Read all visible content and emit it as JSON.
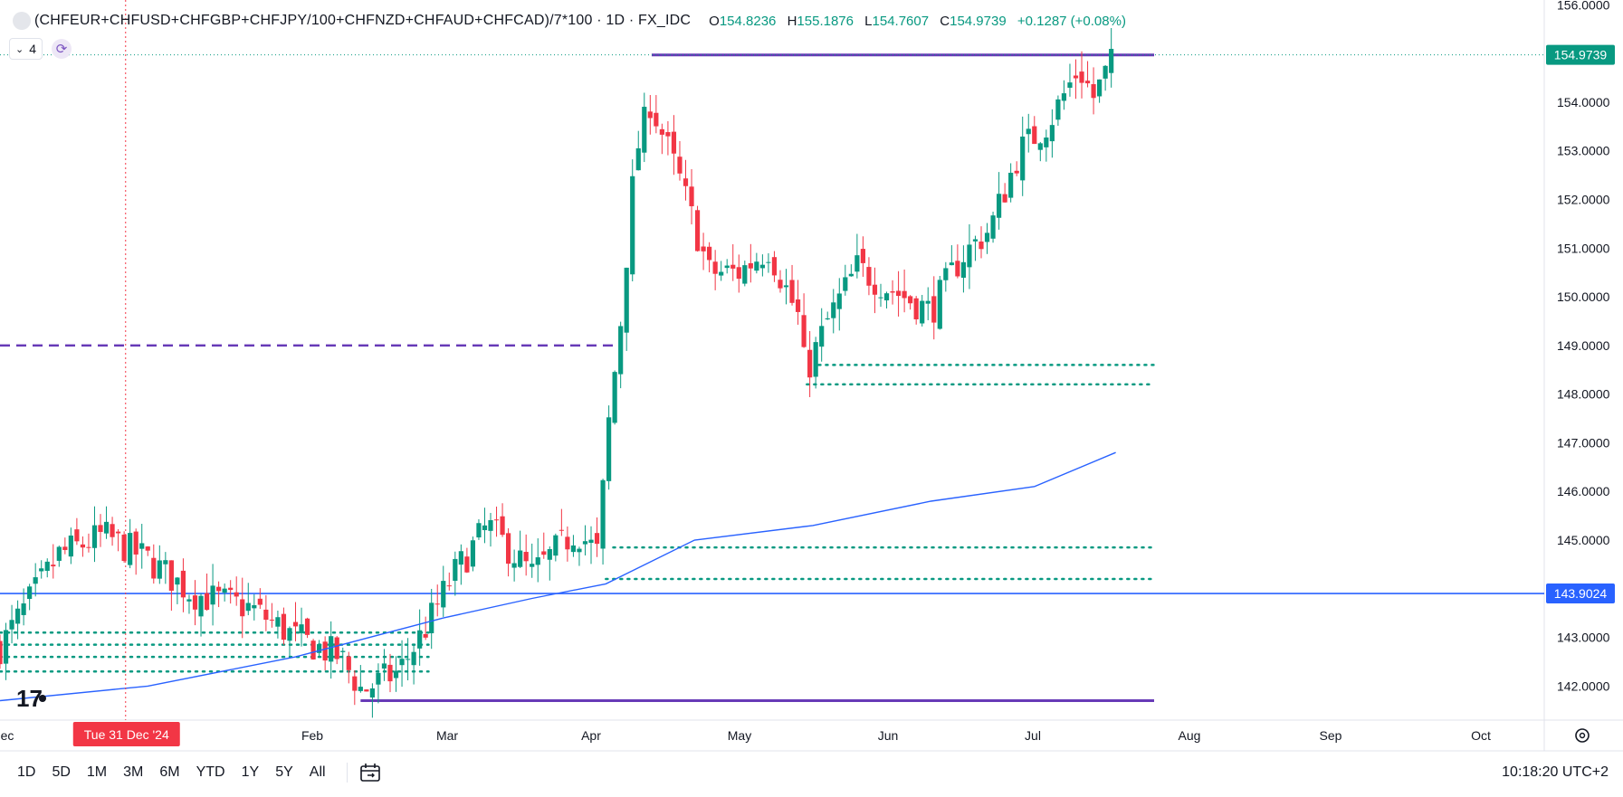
{
  "legend": {
    "symbol": "(CHFEUR+CHFUSD+CHFGBP+CHFJPY/100+CHFNZD+CHFAUD+CHFCAD)/7*100 · 1D · FX_IDC",
    "open_key": "O",
    "open": "154.8236",
    "high_key": "H",
    "high": "155.1876",
    "low_key": "L",
    "low": "154.7607",
    "close_key": "C",
    "close": "154.9739",
    "change": "+0.1287 (+0.08%)"
  },
  "indicators": {
    "count": "4",
    "chevron_icon": "chevron-down-icon",
    "sync_icon": "sync-icon"
  },
  "chart_data": {
    "type": "line",
    "y_range": [
      141.3,
      156.1
    ],
    "y_ticks": [
      "156.0000",
      "155.0000",
      "154.0000",
      "153.0000",
      "152.0000",
      "151.0000",
      "150.0000",
      "149.0000",
      "148.0000",
      "147.0000",
      "146.0000",
      "145.0000",
      "144.0000",
      "143.0000",
      "142.0000"
    ],
    "x_ticks": [
      "ec",
      "Feb",
      "Mar",
      "Apr",
      "May",
      "Jun",
      "Jul",
      "Aug",
      "Sep",
      "Oct"
    ],
    "x_range": [
      0,
      10.45
    ],
    "crosshair_date_label": "Tue 31 Dec '24",
    "crosshair_x": 0.85,
    "last_price_label": "154.9739",
    "last_price": 154.9739,
    "hline_label": "143.9024",
    "hline_price": 143.9024,
    "colors": {
      "up": "#089981",
      "down": "#f23645",
      "ma": "#2962ff",
      "hline": "#2962ff",
      "purple": "#673ab7",
      "dots": "#089981",
      "crosshair": "#f23645"
    },
    "series": [
      {
        "points": [
          [
            0,
            142.8
          ],
          [
            0.4,
            144.7
          ],
          [
            0.7,
            145.1
          ],
          [
            1.0,
            144.6
          ],
          [
            1.3,
            143.9
          ],
          [
            1.7,
            143.6
          ],
          [
            2.0,
            143.0
          ],
          [
            2.3,
            142.6
          ],
          [
            2.45,
            141.9
          ],
          [
            2.7,
            142.3
          ],
          [
            2.9,
            143.3
          ],
          [
            3.05,
            144.2
          ],
          [
            3.3,
            145.3
          ],
          [
            3.6,
            144.3
          ],
          [
            3.9,
            145.2
          ],
          [
            4.05,
            144.7
          ],
          [
            4.1,
            146.9
          ],
          [
            4.2,
            149.5
          ],
          [
            4.3,
            152.9
          ],
          [
            4.4,
            154.0
          ],
          [
            4.6,
            152.4
          ],
          [
            4.8,
            150.5
          ],
          [
            5.0,
            150.5
          ],
          [
            5.2,
            151.0
          ],
          [
            5.4,
            149.6
          ],
          [
            5.45,
            148.4
          ],
          [
            5.6,
            149.5
          ],
          [
            5.8,
            150.6
          ],
          [
            6.0,
            150.2
          ],
          [
            6.3,
            149.7
          ],
          [
            6.5,
            150.8
          ],
          [
            6.7,
            151.4
          ],
          [
            6.9,
            153.0
          ],
          [
            7.1,
            153.6
          ],
          [
            7.3,
            154.7
          ],
          [
            7.4,
            154.1
          ],
          [
            7.55,
            154.97
          ]
        ]
      },
      {
        "name": "",
        "points": [
          [
            0,
            141.7
          ],
          [
            1.0,
            142.0
          ],
          [
            2.0,
            142.6
          ],
          [
            3.0,
            143.4
          ],
          [
            3.6,
            143.8
          ],
          [
            4.1,
            144.1
          ],
          [
            4.7,
            145.0
          ],
          [
            5.5,
            145.3
          ],
          [
            6.3,
            145.8
          ],
          [
            7.0,
            146.1
          ],
          [
            7.55,
            146.8
          ]
        ]
      }
    ],
    "levels": [
      {
        "price": 154.97,
        "from": 4.41,
        "to": 7.81,
        "style": "solid",
        "color": "purple"
      },
      {
        "price": 141.7,
        "from": 2.44,
        "to": 7.81,
        "style": "solid",
        "color": "purple"
      },
      {
        "price": 149.0,
        "from": 0,
        "to": 4.2,
        "style": "dashed",
        "color": "purple"
      },
      {
        "price": 148.6,
        "from": 5.54,
        "to": 7.81,
        "style": "dotted",
        "color": "dots"
      },
      {
        "price": 148.2,
        "from": 5.46,
        "to": 7.81,
        "style": "dotted",
        "color": "dots"
      },
      {
        "price": 144.85,
        "from": 4.15,
        "to": 7.81,
        "style": "dotted",
        "color": "dots"
      },
      {
        "price": 144.2,
        "from": 4.1,
        "to": 7.81,
        "style": "dotted",
        "color": "dots"
      },
      {
        "price": 143.1,
        "from": 0,
        "to": 2.9,
        "style": "dotted",
        "color": "dots"
      },
      {
        "price": 142.85,
        "from": 0,
        "to": 2.9,
        "style": "dotted",
        "color": "dots"
      },
      {
        "price": 142.6,
        "from": 0,
        "to": 2.9,
        "style": "dotted",
        "color": "dots"
      },
      {
        "price": 142.3,
        "from": 0,
        "to": 2.9,
        "style": "dotted",
        "color": "dots"
      }
    ]
  },
  "range_buttons": [
    "1D",
    "5D",
    "1M",
    "3M",
    "6M",
    "YTD",
    "1Y",
    "5Y",
    "All"
  ],
  "goto_icon": "calendar-goto-icon",
  "settings_icon": "gear-icon",
  "logo_icon": "tradingview-logo-icon",
  "clock": "10:18:20 UTC+2"
}
